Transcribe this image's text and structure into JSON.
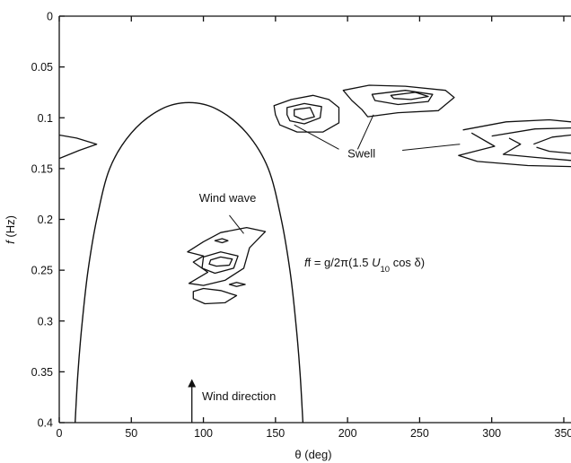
{
  "chart_data": {
    "type": "line",
    "x_axis": {
      "label_symbol": "θ",
      "label_unit": "(deg)",
      "lim": [
        0,
        355
      ],
      "ticks": [
        0,
        50,
        100,
        150,
        200,
        250,
        300,
        350
      ],
      "tick_labels": [
        "0",
        "50",
        "100",
        "150",
        "200",
        "250",
        "300",
        "350"
      ]
    },
    "y_axis": {
      "label_symbol": "f",
      "label_unit": "(Hz)",
      "lim": [
        0,
        0.4
      ],
      "inverted": true,
      "ticks": [
        0,
        0.05,
        0.1,
        0.15,
        0.2,
        0.25,
        0.3,
        0.35,
        0.4
      ],
      "tick_labels": [
        "0",
        "0.05",
        "0.1",
        "0.15",
        "0.2",
        "0.25",
        "0.3",
        "0.35",
        "0.4"
      ]
    },
    "grid": false,
    "boundary_curve": {
      "label_prefix": "f = g/2π(1.5 ",
      "label_var": "U",
      "label_sub": "10",
      "label_suffix": " cos δ)",
      "peak_theta": 90,
      "peak_f": 0.085,
      "points": [
        [
          11,
          0.4
        ],
        [
          13,
          0.35
        ],
        [
          16,
          0.3
        ],
        [
          20,
          0.25
        ],
        [
          26,
          0.2
        ],
        [
          35,
          0.15
        ],
        [
          50,
          0.115
        ],
        [
          70,
          0.092
        ],
        [
          90,
          0.085
        ],
        [
          110,
          0.092
        ],
        [
          130,
          0.115
        ],
        [
          145,
          0.15
        ],
        [
          154,
          0.2
        ],
        [
          160,
          0.25
        ],
        [
          164,
          0.3
        ],
        [
          167,
          0.35
        ],
        [
          169,
          0.4
        ]
      ]
    },
    "contours": [
      {
        "group": "wind_wave",
        "points": [
          [
            89,
            0.232
          ],
          [
            100,
            0.222
          ],
          [
            112,
            0.213
          ],
          [
            130,
            0.208
          ],
          [
            143,
            0.212
          ],
          [
            132,
            0.228
          ],
          [
            128,
            0.248
          ],
          [
            115,
            0.26
          ],
          [
            100,
            0.265
          ],
          [
            90,
            0.263
          ],
          [
            103,
            0.252
          ],
          [
            93,
            0.242
          ],
          [
            100,
            0.236
          ]
        ]
      },
      {
        "group": "wind_wave",
        "points": [
          [
            100,
            0.237
          ],
          [
            112,
            0.232
          ],
          [
            124,
            0.236
          ],
          [
            121,
            0.248
          ],
          [
            108,
            0.253
          ],
          [
            99,
            0.248
          ]
        ]
      },
      {
        "group": "wind_wave",
        "points": [
          [
            105,
            0.24
          ],
          [
            112,
            0.237
          ],
          [
            120,
            0.239
          ],
          [
            118,
            0.245
          ],
          [
            109,
            0.246
          ],
          [
            104,
            0.244
          ]
        ]
      },
      {
        "group": "wind_wave",
        "points": [
          [
            108,
            0.221
          ],
          [
            113,
            0.219
          ],
          [
            117,
            0.221
          ],
          [
            113,
            0.223
          ]
        ]
      },
      {
        "group": "wind_wave",
        "points": [
          [
            118,
            0.264
          ],
          [
            123,
            0.262
          ],
          [
            129,
            0.264
          ],
          [
            123,
            0.266
          ]
        ]
      },
      {
        "group": "wind_wave",
        "points": [
          [
            93,
            0.271
          ],
          [
            100,
            0.268
          ],
          [
            112,
            0.27
          ],
          [
            123,
            0.275
          ],
          [
            115,
            0.282
          ],
          [
            101,
            0.283
          ],
          [
            93,
            0.278
          ]
        ]
      },
      {
        "group": "swell",
        "points": [
          [
            149,
            0.088
          ],
          [
            161,
            0.082
          ],
          [
            176,
            0.078
          ],
          [
            187,
            0.082
          ],
          [
            194,
            0.09
          ],
          [
            194,
            0.105
          ],
          [
            183,
            0.114
          ],
          [
            165,
            0.114
          ],
          [
            153,
            0.107
          ],
          [
            150,
            0.097
          ]
        ]
      },
      {
        "group": "swell",
        "points": [
          [
            158,
            0.09
          ],
          [
            170,
            0.086
          ],
          [
            182,
            0.089
          ],
          [
            181,
            0.1
          ],
          [
            170,
            0.106
          ],
          [
            160,
            0.103
          ],
          [
            158,
            0.097
          ]
        ]
      },
      {
        "group": "swell",
        "points": [
          [
            163,
            0.092
          ],
          [
            174,
            0.09
          ],
          [
            177,
            0.099
          ],
          [
            169,
            0.102
          ],
          [
            163,
            0.098
          ]
        ]
      },
      {
        "group": "swell",
        "points": [
          [
            197,
            0.073
          ],
          [
            215,
            0.068
          ],
          [
            240,
            0.069
          ],
          [
            268,
            0.073
          ],
          [
            274,
            0.08
          ],
          [
            263,
            0.093
          ],
          [
            235,
            0.095
          ],
          [
            214,
            0.099
          ],
          [
            210,
            0.092
          ],
          [
            203,
            0.083
          ]
        ]
      },
      {
        "group": "swell",
        "points": [
          [
            217,
            0.077
          ],
          [
            240,
            0.073
          ],
          [
            259,
            0.077
          ],
          [
            256,
            0.084
          ],
          [
            235,
            0.087
          ],
          [
            219,
            0.083
          ]
        ]
      },
      {
        "group": "swell",
        "points": [
          [
            230,
            0.078
          ],
          [
            247,
            0.075
          ],
          [
            256,
            0.079
          ],
          [
            244,
            0.082
          ],
          [
            232,
            0.081
          ]
        ]
      },
      {
        "group": "swell",
        "points": [
          [
            280,
            0.112
          ],
          [
            310,
            0.104
          ],
          [
            340,
            0.102
          ],
          [
            355,
            0.104
          ]
        ]
      },
      {
        "group": "swell",
        "points": [
          [
            355,
            0.148
          ],
          [
            325,
            0.147
          ],
          [
            290,
            0.143
          ],
          [
            277,
            0.137
          ],
          [
            302,
            0.128
          ],
          [
            286,
            0.115
          ]
        ]
      },
      {
        "group": "swell",
        "points": [
          [
            300,
            0.118
          ],
          [
            330,
            0.111
          ],
          [
            355,
            0.11
          ]
        ]
      },
      {
        "group": "swell",
        "points": [
          [
            355,
            0.142
          ],
          [
            330,
            0.139
          ],
          [
            308,
            0.136
          ],
          [
            320,
            0.126
          ],
          [
            312,
            0.12
          ]
        ]
      },
      {
        "group": "swell",
        "points": [
          [
            329,
            0.126
          ],
          [
            342,
            0.119
          ],
          [
            355,
            0.117
          ]
        ]
      },
      {
        "group": "swell",
        "points": [
          [
            355,
            0.135
          ],
          [
            340,
            0.133
          ],
          [
            331,
            0.129
          ]
        ]
      },
      {
        "group": "swell",
        "points": [
          [
            0,
            0.117
          ],
          [
            12,
            0.12
          ],
          [
            26,
            0.126
          ],
          [
            14,
            0.132
          ],
          [
            0,
            0.14
          ]
        ]
      }
    ],
    "annotations": [
      {
        "id": "wind_wave",
        "text": "Wind wave",
        "anchor": [
          97,
          0.183
        ],
        "pointer": [
          [
            118,
            0.196
          ],
          [
            128,
            0.214
          ]
        ]
      },
      {
        "id": "swell",
        "text": "Swell",
        "anchor": [
          200,
          0.139
        ],
        "pointer_from": [
          [
            194,
            0.131
          ],
          [
            207,
            0.131
          ],
          [
            238,
            0.132
          ]
        ],
        "pointer_to": [
          [
            163,
            0.107
          ],
          [
            218,
            0.097
          ],
          [
            278,
            0.126
          ]
        ]
      },
      {
        "id": "wind_direction",
        "text": "Wind direction",
        "arrow_theta": 92,
        "arrow_from_f": 0.4,
        "arrow_to_f": 0.358,
        "anchor": [
          99,
          0.378
        ]
      }
    ]
  }
}
